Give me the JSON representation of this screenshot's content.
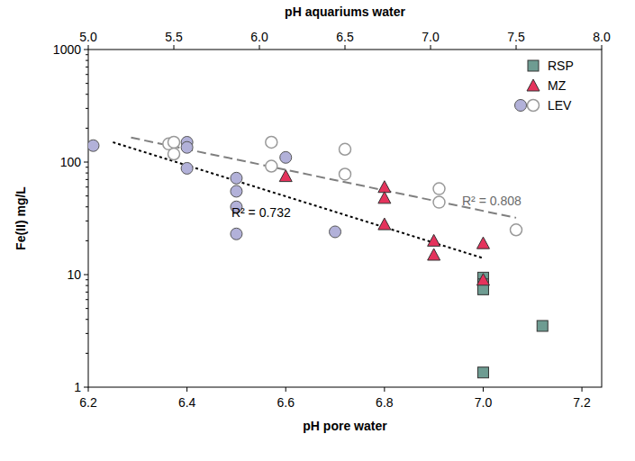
{
  "chart_data": {
    "type": "scatter",
    "log": "y",
    "xlabel": "pH pore water",
    "x2label": "pH aquariums water",
    "ylabel": "Fe(II) mg/L",
    "xlim": [
      6.2,
      7.24
    ],
    "xticks": [
      6.2,
      6.4,
      6.6,
      6.8,
      {
        "value": 7,
        "label": "7.0"
      },
      7.2
    ],
    "x2lim": [
      5,
      8
    ],
    "x2ticks": [
      {
        "value": 5,
        "label": "5.0"
      },
      5.5,
      {
        "value": 6,
        "label": "6.0"
      },
      6.5,
      {
        "value": 7,
        "label": "7.0"
      },
      7.5,
      {
        "value": 8,
        "label": "8.0"
      }
    ],
    "ylim": [
      1,
      1000
    ],
    "yticks": [
      1,
      10,
      100,
      1000
    ],
    "legend": "top-right",
    "series": [
      {
        "name": "RSP",
        "color": "#6e9c92",
        "marker": "square",
        "x": [
          7.0,
          7.0,
          7.0,
          7.0,
          7.12
        ],
        "values": [
          9.4,
          8.2,
          7.4,
          1.35,
          3.5
        ]
      },
      {
        "name": "MZ",
        "color": "#e4335c",
        "marker": "triangle",
        "x": [
          6.6,
          6.8,
          6.8,
          6.8,
          6.9,
          6.9,
          7.0,
          7.0
        ],
        "values": [
          75,
          60,
          48,
          28,
          20,
          15,
          19,
          9
        ]
      },
      {
        "name": "LEV",
        "color": "#b2b1d9",
        "marker": "circle",
        "x": [
          6.21,
          6.4,
          6.4,
          6.4,
          6.5,
          6.5,
          6.5,
          6.5,
          6.6,
          6.7
        ],
        "values": [
          140,
          150,
          135,
          88,
          72,
          55,
          40,
          23,
          110,
          24
        ]
      },
      {
        "name": "LEV",
        "color": "#999999",
        "marker": "open_circle",
        "axis": "x2",
        "x": [
          5.47,
          5.5,
          5.5,
          6.07,
          6.07,
          6.5,
          6.5,
          7.05,
          7.05,
          7.5
        ],
        "values": [
          145,
          150,
          118,
          150,
          92,
          130,
          78,
          58,
          44,
          25
        ]
      },
      {
        "type": "line",
        "line_style": "dashed",
        "color": "#7f7f7f",
        "axis": "x2",
        "label": "R² = 0.808",
        "x": [
          5.25,
          7.5
        ],
        "values": [
          165,
          32
        ]
      },
      {
        "type": "line",
        "line_style": "dotted",
        "color": "#000000",
        "label": "R² = 0.732",
        "x": [
          6.25,
          7.0
        ],
        "values": [
          150,
          14
        ]
      }
    ]
  }
}
